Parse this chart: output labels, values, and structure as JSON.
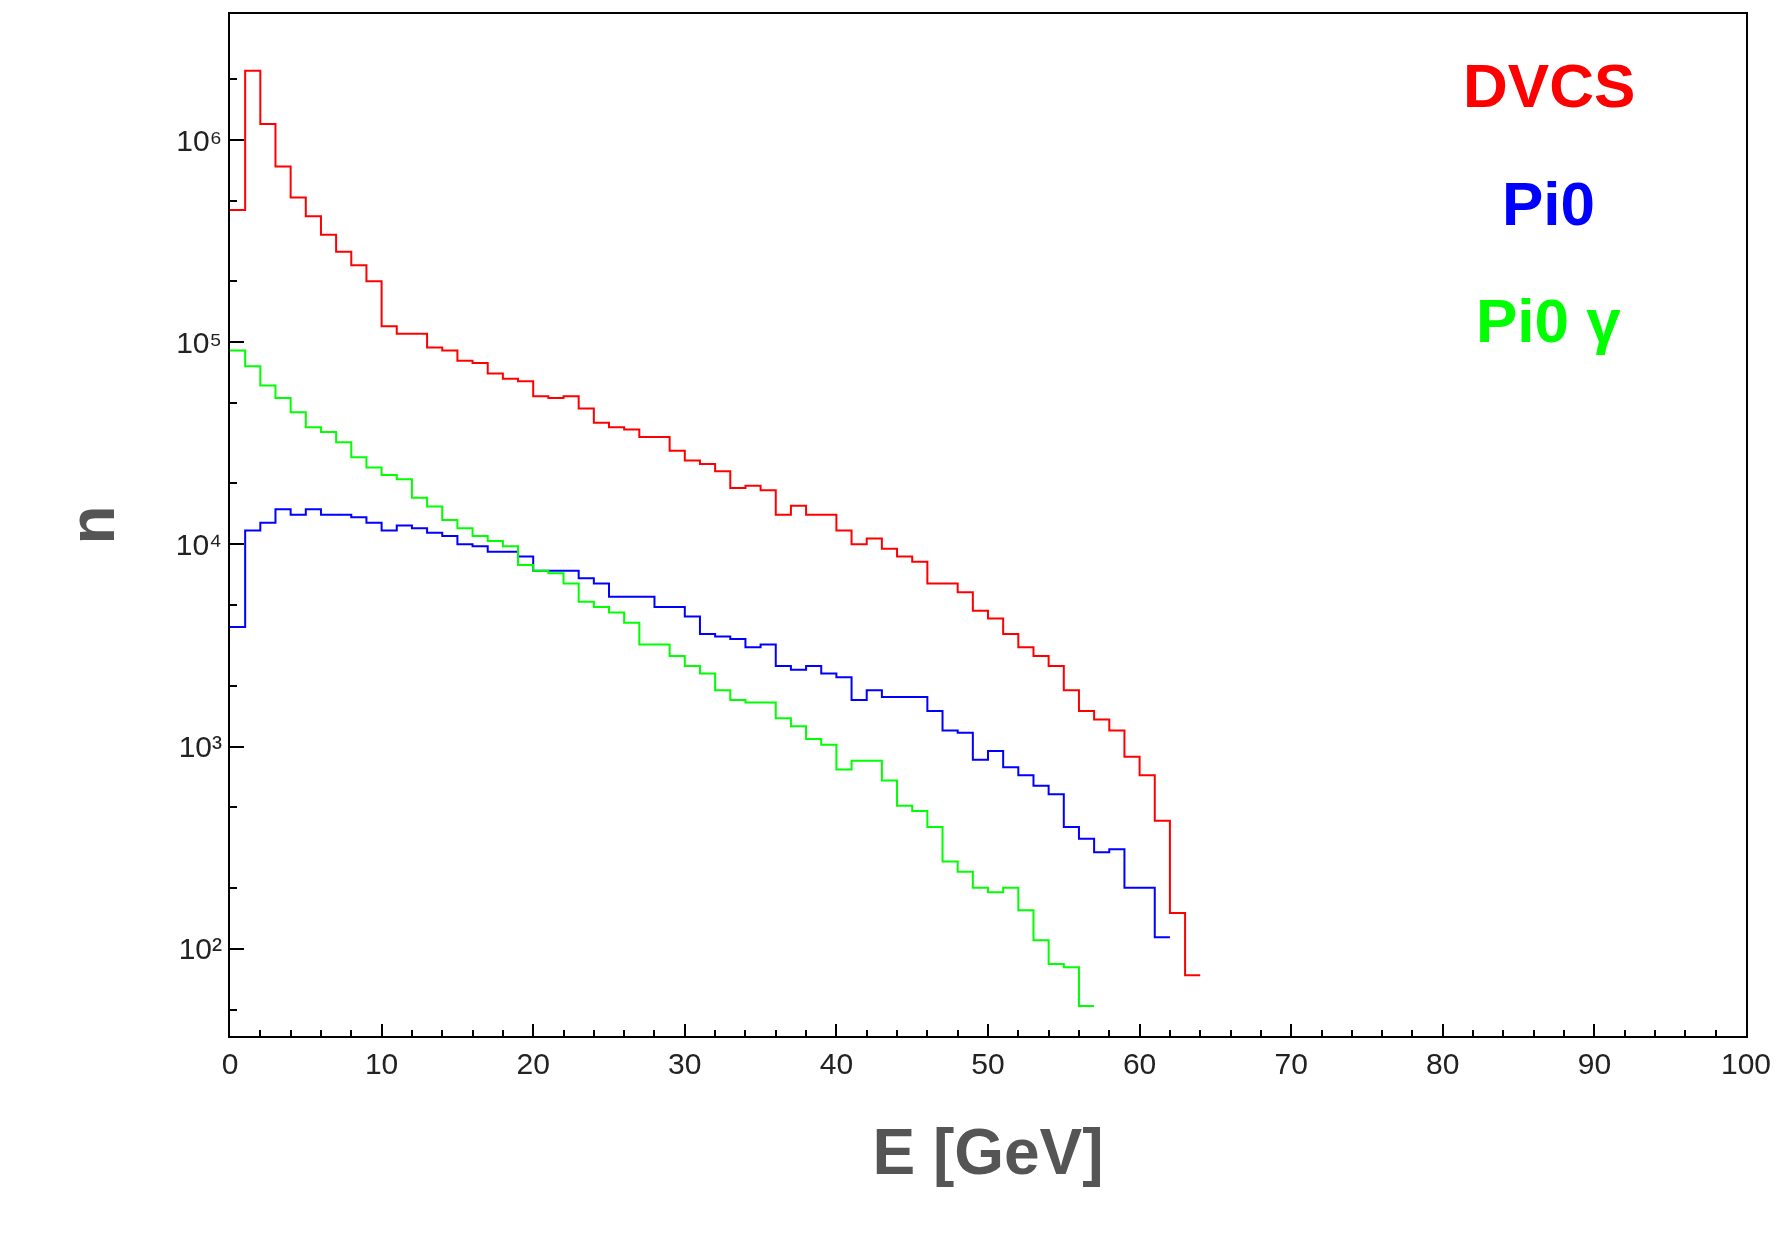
{
  "chart_data": {
    "type": "histogram",
    "xlabel": "E [GeV]",
    "ylabel": "n",
    "bins": [
      0,
      1,
      2,
      3,
      4,
      5,
      6,
      7,
      8,
      9,
      10,
      11,
      12,
      13,
      14,
      15,
      16,
      17,
      18,
      19,
      20,
      21,
      22,
      23,
      24,
      25,
      26,
      27,
      28,
      29,
      30,
      31,
      32,
      33,
      34,
      35,
      36,
      37,
      38,
      39,
      40,
      41,
      42,
      43,
      44,
      45,
      46,
      47,
      48,
      49,
      50,
      51,
      52,
      53,
      54,
      55,
      56,
      57,
      58,
      59,
      60,
      61,
      62,
      63,
      64
    ],
    "series": [
      {
        "name": "DVCS",
        "color": "#ff0000",
        "values": [
          450000,
          2200000,
          1200000,
          740000,
          520000,
          420000,
          340000,
          280000,
          240000,
          200000,
          120000,
          110000,
          110000,
          94000,
          91000,
          81000,
          79000,
          70000,
          66000,
          64000,
          54000,
          53000,
          54000,
          47000,
          40000,
          38000,
          37000,
          34000,
          34000,
          29000,
          26000,
          25000,
          23000,
          19000,
          19500,
          18500,
          14000,
          15500,
          14000,
          14000,
          11700,
          10000,
          10700,
          9500,
          8700,
          8200,
          6400,
          6400,
          5800,
          4700,
          4300,
          3600,
          3100,
          2800,
          2500,
          1900,
          1500,
          1360,
          1200,
          890,
          720,
          430,
          150,
          74
        ]
      },
      {
        "name": "Pi0",
        "color": "#0000ff",
        "values": [
          3900,
          11700,
          12800,
          14900,
          14000,
          14900,
          14000,
          14000,
          13600,
          12800,
          11700,
          12400,
          12000,
          11400,
          11000,
          10000,
          9800,
          9200,
          9200,
          8700,
          7400,
          7400,
          7400,
          6800,
          6400,
          5500,
          5500,
          5500,
          4900,
          4900,
          4400,
          3600,
          3500,
          3400,
          3100,
          3200,
          2500,
          2400,
          2500,
          2300,
          2200,
          1700,
          1900,
          1760,
          1760,
          1760,
          1500,
          1200,
          1170,
          860,
          950,
          790,
          720,
          640,
          580,
          400,
          350,
          300,
          310,
          200,
          200,
          114
        ],
        "bins": [
          0,
          1,
          2,
          3,
          4,
          5,
          6,
          7,
          8,
          9,
          10,
          11,
          12,
          13,
          14,
          15,
          16,
          17,
          18,
          19,
          20,
          21,
          22,
          23,
          24,
          25,
          26,
          27,
          28,
          29,
          30,
          31,
          32,
          33,
          34,
          35,
          36,
          37,
          38,
          39,
          40,
          41,
          42,
          43,
          44,
          45,
          46,
          47,
          48,
          49,
          50,
          51,
          52,
          53,
          54,
          55,
          56,
          57,
          58,
          59,
          60,
          61,
          62
        ]
      },
      {
        "name": "Pi0 γ",
        "color": "#00ff00",
        "values": [
          91000,
          76000,
          61000,
          53000,
          45000,
          38000,
          36000,
          32000,
          27000,
          24000,
          22000,
          21000,
          17000,
          15400,
          13200,
          12000,
          11000,
          10400,
          9800,
          7900,
          7400,
          7200,
          6400,
          5200,
          4900,
          4600,
          4100,
          3200,
          3200,
          2800,
          2500,
          2300,
          1900,
          1700,
          1650,
          1650,
          1380,
          1260,
          1090,
          1020,
          770,
          850,
          850,
          680,
          510,
          480,
          400,
          270,
          240,
          200,
          190,
          200,
          155,
          110,
          84,
          81,
          52
        ],
        "bins": [
          0,
          1,
          2,
          3,
          4,
          5,
          6,
          7,
          8,
          9,
          10,
          11,
          12,
          13,
          14,
          15,
          16,
          17,
          18,
          19,
          20,
          21,
          22,
          23,
          24,
          25,
          26,
          27,
          28,
          29,
          30,
          31,
          32,
          33,
          34,
          35,
          36,
          37,
          38,
          39,
          40,
          41,
          42,
          43,
          44,
          45,
          46,
          47,
          48,
          49,
          50,
          51,
          52,
          53,
          54,
          55,
          56,
          57
        ]
      }
    ],
    "xlim": [
      0,
      100
    ],
    "xticks": [
      0,
      10,
      20,
      30,
      40,
      50,
      60,
      70,
      80,
      90,
      100
    ],
    "ylim": [
      37,
      4200000
    ],
    "yticks": [
      {
        "value": 100,
        "label": "10²"
      },
      {
        "value": 1000,
        "label": "10³"
      },
      {
        "value": 10000,
        "label": "10⁴"
      },
      {
        "value": 100000,
        "label": "10⁵"
      },
      {
        "value": 1000000,
        "label": "10⁶"
      }
    ],
    "log": true,
    "legend": "top right"
  }
}
